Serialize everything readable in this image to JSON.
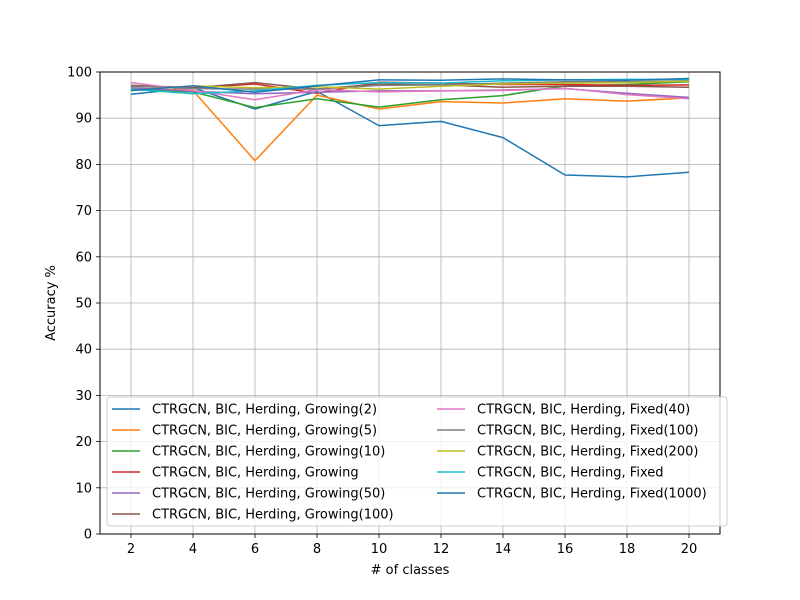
{
  "chart_data": {
    "type": "line",
    "title": "",
    "xlabel": "# of classes",
    "ylabel": "Accuracy %",
    "xlim": [
      1,
      21
    ],
    "ylim": [
      0,
      100
    ],
    "x": [
      2,
      4,
      6,
      8,
      10,
      12,
      14,
      16,
      18,
      20
    ],
    "xticks": [
      2,
      4,
      6,
      8,
      10,
      12,
      14,
      16,
      18,
      20
    ],
    "yticks": [
      0,
      10,
      20,
      30,
      40,
      50,
      60,
      70,
      80,
      90,
      100
    ],
    "grid": true,
    "legend_position": "lower center",
    "series": [
      {
        "name": "CTRGCN, BIC, Herding, Growing(2)",
        "color": "#1f77b4",
        "values": [
          95.2,
          96.6,
          92.0,
          95.8,
          88.4,
          89.3,
          85.8,
          77.7,
          77.3,
          78.3
        ]
      },
      {
        "name": "CTRGCN, BIC, Herding, Growing(5)",
        "color": "#ff7f0e",
        "values": [
          96.5,
          96.0,
          80.8,
          95.0,
          92.0,
          93.6,
          93.3,
          94.2,
          93.7,
          94.4
        ]
      },
      {
        "name": "CTRGCN, BIC, Herding, Growing(10)",
        "color": "#2ca02c",
        "values": [
          96.2,
          95.7,
          92.3,
          94.2,
          92.4,
          94.0,
          94.9,
          97.0,
          97.3,
          97.9
        ]
      },
      {
        "name": "CTRGCN, BIC, Herding, Growing",
        "color": "#d62728",
        "values": [
          97.0,
          96.6,
          97.4,
          95.4,
          97.8,
          97.6,
          97.3,
          97.3,
          97.1,
          97.2
        ]
      },
      {
        "name": "CTRGCN, BIC, Herding, Growing(50)",
        "color": "#9467bd",
        "values": [
          96.6,
          95.8,
          95.3,
          95.6,
          95.9,
          95.9,
          96.1,
          96.4,
          95.4,
          94.5
        ]
      },
      {
        "name": "CTRGCN, BIC, Herding, Growing(100)",
        "color": "#8c564b",
        "values": [
          97.1,
          96.6,
          97.7,
          96.3,
          97.4,
          97.2,
          96.7,
          96.9,
          96.9,
          96.7
        ]
      },
      {
        "name": "CTRGCN, BIC, Herding, Fixed(40)",
        "color": "#e377c2",
        "values": [
          97.7,
          96.0,
          94.0,
          96.2,
          95.7,
          95.9,
          96.0,
          96.5,
          95.1,
          94.2
        ]
      },
      {
        "name": "CTRGCN, BIC, Herding, Fixed(100)",
        "color": "#7f7f7f",
        "values": [
          96.9,
          96.4,
          96.3,
          96.3,
          97.1,
          97.2,
          97.6,
          97.9,
          97.9,
          98.1
        ]
      },
      {
        "name": "CTRGCN, BIC, Herding, Fixed(200)",
        "color": "#bcbd22",
        "values": [
          96.0,
          97.0,
          96.6,
          96.8,
          96.3,
          96.9,
          97.4,
          97.6,
          97.7,
          98.0
        ]
      },
      {
        "name": "CTRGCN, BIC, Herding, Fixed",
        "color": "#17becf",
        "values": [
          96.3,
          95.3,
          95.9,
          97.1,
          97.7,
          97.6,
          98.1,
          98.3,
          98.4,
          98.4
        ]
      },
      {
        "name": "CTRGCN, BIC, Herding, Fixed(1000)",
        "color": "#1f77b4",
        "values": [
          96.0,
          97.0,
          95.6,
          97.0,
          98.3,
          98.2,
          98.5,
          98.3,
          98.2,
          98.6
        ]
      }
    ]
  }
}
